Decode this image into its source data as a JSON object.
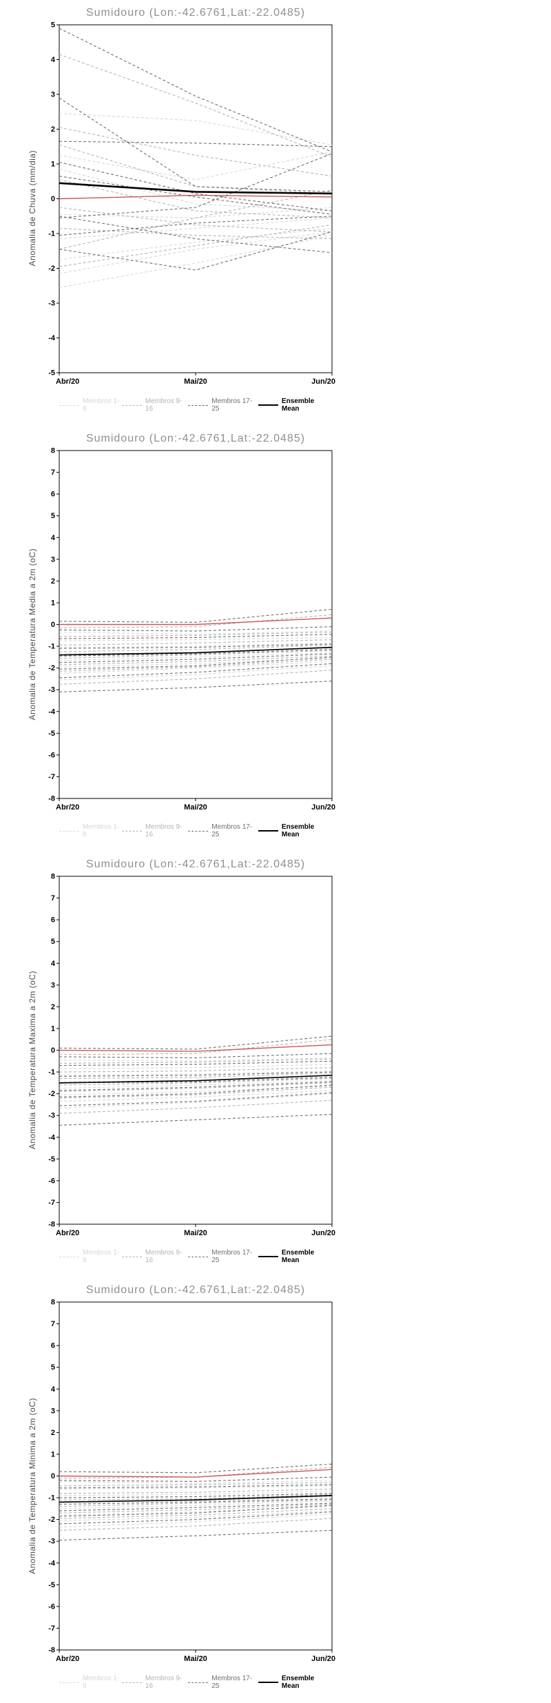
{
  "x_labels": [
    "Abr/20",
    "Mai/20",
    "Jun/20"
  ],
  "legend": [
    {
      "label": "Membros 1-8",
      "color": "#d6d6d6",
      "style": "dashed",
      "bold": false
    },
    {
      "label": "Membros 9-16",
      "color": "#b3b3b3",
      "style": "dashed",
      "bold": false
    },
    {
      "label": "Membros 17-25",
      "color": "#6f6f6f",
      "style": "dashed",
      "bold": false
    },
    {
      "label": "Ensemble Mean",
      "color": "#000000",
      "style": "solid",
      "bold": true
    }
  ],
  "colors": {
    "mean": "#000000",
    "red_line": "#cc5555",
    "frame": "#000000",
    "title": "#8f8f8f"
  },
  "chart_data": [
    {
      "type": "line",
      "title": "Sumidouro (Lon:-42.6761,Lat:-22.0485)",
      "ylabel": "Anomalia de Chuva (mm/dia)",
      "xlabel": "",
      "ylim": [
        -5,
        5
      ],
      "ytick": 1,
      "x_labels": [
        "Abr/20",
        "Mai/20",
        "Jun/20"
      ],
      "grid": false,
      "legend_position": "bottom",
      "groups": [
        {
          "name": "Membros 1-8",
          "color": "#d6d6d6",
          "series": [
            [
              2.45,
              2.25,
              1.55
            ],
            [
              1.25,
              0.55,
              1.35
            ],
            [
              0.85,
              -0.15,
              -0.35
            ],
            [
              -0.45,
              -0.55,
              -0.25
            ],
            [
              -1.15,
              -0.85,
              -0.55
            ],
            [
              -1.75,
              -1.25,
              -0.85
            ],
            [
              -2.15,
              -1.45,
              -0.95
            ],
            [
              -2.55,
              -1.85,
              -1.05
            ]
          ]
        },
        {
          "name": "Membros 9-16",
          "color": "#b3b3b3",
          "series": [
            [
              4.15,
              2.75,
              1.2
            ],
            [
              2.05,
              1.25,
              0.65
            ],
            [
              1.55,
              0.35,
              0.15
            ],
            [
              0.55,
              -0.35,
              -0.55
            ],
            [
              -0.25,
              -0.75,
              -0.95
            ],
            [
              -0.85,
              -1.05,
              -1.15
            ],
            [
              -1.45,
              -0.55,
              0.25
            ],
            [
              -1.95,
              -1.35,
              -0.75
            ]
          ]
        },
        {
          "name": "Membros 17-25",
          "color": "#6f6f6f",
          "series": [
            [
              4.9,
              2.95,
              1.35
            ],
            [
              2.9,
              0.35,
              0.2
            ],
            [
              1.65,
              1.6,
              1.5
            ],
            [
              1.05,
              0.15,
              -0.35
            ],
            [
              -0.55,
              -0.25,
              1.3
            ],
            [
              0.65,
              0.05,
              -0.45
            ],
            [
              -0.5,
              -1.15,
              -1.55
            ],
            [
              -1.05,
              -0.7,
              -0.5
            ],
            [
              -1.45,
              -2.05,
              -0.95
            ]
          ]
        }
      ],
      "ensemble_mean": [
        0.45,
        0.2,
        0.15
      ],
      "red_line": [
        0.0,
        0.1,
        0.05
      ]
    },
    {
      "type": "line",
      "title": "Sumidouro (Lon:-42.6761,Lat:-22.0485)",
      "ylabel": "Anomalia de Temperatura Media a 2m (oC)",
      "xlabel": "",
      "ylim": [
        -8,
        8
      ],
      "ytick": 1,
      "x_labels": [
        "Abr/20",
        "Mai/20",
        "Jun/20"
      ],
      "grid": false,
      "legend_position": "bottom",
      "groups": [
        {
          "name": "Membros 1-8",
          "color": "#d6d6d6",
          "series": [
            [
              -0.35,
              -0.45,
              -0.3
            ],
            [
              -0.75,
              -0.7,
              -0.6
            ],
            [
              -1.05,
              -1.0,
              -0.85
            ],
            [
              -1.35,
              -1.3,
              -1.1
            ],
            [
              -1.65,
              -1.5,
              -1.3
            ],
            [
              -1.95,
              -1.8,
              -1.55
            ],
            [
              -2.25,
              -2.0,
              -1.7
            ],
            [
              -2.55,
              -2.3,
              -1.9
            ]
          ]
        },
        {
          "name": "Membros 9-16",
          "color": "#b3b3b3",
          "series": [
            [
              -0.15,
              -0.1,
              0.45
            ],
            [
              -0.55,
              -0.5,
              -0.35
            ],
            [
              -0.95,
              -0.85,
              -0.7
            ],
            [
              -1.25,
              -1.15,
              -0.95
            ],
            [
              -1.55,
              -1.4,
              -1.2
            ],
            [
              -1.85,
              -1.7,
              -1.45
            ],
            [
              -2.15,
              -1.95,
              -1.6
            ],
            [
              -2.75,
              -2.5,
              -2.1
            ]
          ]
        },
        {
          "name": "Membros 17-25",
          "color": "#6f6f6f",
          "series": [
            [
              0.15,
              0.1,
              0.7
            ],
            [
              -0.25,
              -0.3,
              -0.1
            ],
            [
              -0.65,
              -0.6,
              -0.45
            ],
            [
              -1.1,
              -1.05,
              -0.9
            ],
            [
              -1.45,
              -1.35,
              -1.15
            ],
            [
              -1.75,
              -1.6,
              -1.35
            ],
            [
              -2.05,
              -1.9,
              -1.5
            ],
            [
              -2.45,
              -2.2,
              -1.8
            ],
            [
              -3.1,
              -2.9,
              -2.6
            ]
          ]
        }
      ],
      "ensemble_mean": [
        -1.4,
        -1.3,
        -1.05
      ],
      "red_line": [
        0.0,
        0.0,
        0.3
      ]
    },
    {
      "type": "line",
      "title": "Sumidouro (Lon:-42.6761,Lat:-22.0485)",
      "ylabel": "Anomalia de Temperatura Maxima a 2m (oC)",
      "xlabel": "",
      "ylim": [
        -8,
        8
      ],
      "ytick": 1,
      "x_labels": [
        "Abr/20",
        "Mai/20",
        "Jun/20"
      ],
      "grid": false,
      "legend_position": "bottom",
      "groups": [
        {
          "name": "Membros 1-8",
          "color": "#d6d6d6",
          "series": [
            [
              -0.45,
              -0.5,
              -0.35
            ],
            [
              -0.85,
              -0.8,
              -0.65
            ],
            [
              -1.15,
              -1.1,
              -0.95
            ],
            [
              -1.45,
              -1.4,
              -1.2
            ],
            [
              -1.75,
              -1.6,
              -1.4
            ],
            [
              -2.05,
              -1.9,
              -1.65
            ],
            [
              -2.35,
              -2.15,
              -1.85
            ],
            [
              -2.65,
              -2.4,
              -2.0
            ]
          ]
        },
        {
          "name": "Membros 9-16",
          "color": "#b3b3b3",
          "series": [
            [
              -0.2,
              -0.15,
              0.5
            ],
            [
              -0.6,
              -0.55,
              -0.4
            ],
            [
              -1.0,
              -0.95,
              -0.8
            ],
            [
              -1.3,
              -1.25,
              -1.05
            ],
            [
              -1.6,
              -1.5,
              -1.3
            ],
            [
              -1.9,
              -1.75,
              -1.5
            ],
            [
              -2.2,
              -2.05,
              -1.7
            ],
            [
              -2.9,
              -2.65,
              -2.3
            ]
          ]
        },
        {
          "name": "Membros 17-25",
          "color": "#6f6f6f",
          "series": [
            [
              0.1,
              0.05,
              0.65
            ],
            [
              -0.3,
              -0.35,
              -0.15
            ],
            [
              -0.7,
              -0.65,
              -0.5
            ],
            [
              -1.2,
              -1.15,
              -1.0
            ],
            [
              -1.5,
              -1.45,
              -1.25
            ],
            [
              -1.85,
              -1.7,
              -1.45
            ],
            [
              -2.15,
              -2.0,
              -1.6
            ],
            [
              -2.55,
              -2.35,
              -1.95
            ],
            [
              -3.45,
              -3.2,
              -2.95
            ]
          ]
        }
      ],
      "ensemble_mean": [
        -1.5,
        -1.4,
        -1.15
      ],
      "red_line": [
        0.0,
        -0.05,
        0.25
      ]
    },
    {
      "type": "line",
      "title": "Sumidouro (Lon:-42.6761,Lat:-22.0485)",
      "ylabel": "Anomalia de Temperatura Minima a 2m (oC)",
      "xlabel": "",
      "ylim": [
        -8,
        8
      ],
      "ytick": 1,
      "x_labels": [
        "Abr/20",
        "Mai/20",
        "Jun/20"
      ],
      "grid": false,
      "legend_position": "bottom",
      "groups": [
        {
          "name": "Membros 1-8",
          "color": "#d6d6d6",
          "series": [
            [
              -0.25,
              -0.35,
              -0.2
            ],
            [
              -0.6,
              -0.55,
              -0.45
            ],
            [
              -0.9,
              -0.85,
              -0.7
            ],
            [
              -1.2,
              -1.15,
              -0.95
            ],
            [
              -1.5,
              -1.35,
              -1.15
            ],
            [
              -1.8,
              -1.65,
              -1.4
            ],
            [
              -2.05,
              -1.9,
              -1.6
            ],
            [
              -2.35,
              -2.1,
              -1.75
            ]
          ]
        },
        {
          "name": "Membros 9-16",
          "color": "#b3b3b3",
          "series": [
            [
              -0.1,
              -0.05,
              0.4
            ],
            [
              -0.45,
              -0.4,
              -0.3
            ],
            [
              -0.8,
              -0.75,
              -0.6
            ],
            [
              -1.1,
              -1.05,
              -0.85
            ],
            [
              -1.4,
              -1.25,
              -1.1
            ],
            [
              -1.7,
              -1.55,
              -1.3
            ],
            [
              -1.95,
              -1.8,
              -1.5
            ],
            [
              -2.5,
              -2.3,
              -1.95
            ]
          ]
        },
        {
          "name": "Membros 17-25",
          "color": "#6f6f6f",
          "series": [
            [
              0.2,
              0.15,
              0.55
            ],
            [
              -0.2,
              -0.25,
              -0.05
            ],
            [
              -0.55,
              -0.5,
              -0.4
            ],
            [
              -1.0,
              -0.95,
              -0.8
            ],
            [
              -1.3,
              -1.2,
              -1.05
            ],
            [
              -1.6,
              -1.45,
              -1.25
            ],
            [
              -1.85,
              -1.7,
              -1.35
            ],
            [
              -2.2,
              -2.0,
              -1.65
            ],
            [
              -2.95,
              -2.75,
              -2.5
            ]
          ]
        }
      ],
      "ensemble_mean": [
        -1.2,
        -1.1,
        -0.9
      ],
      "red_line": [
        0.0,
        -0.05,
        0.3
      ]
    }
  ]
}
